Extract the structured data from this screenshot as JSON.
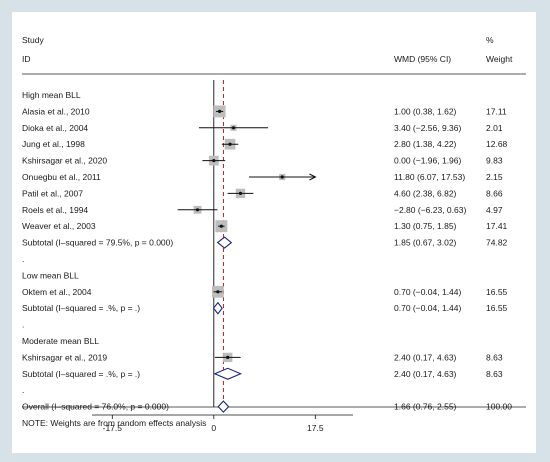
{
  "chart_data": {
    "type": "forest",
    "header": {
      "col1_line1": "Study",
      "col1_line2": "ID",
      "effect": "WMD (95% CI)",
      "weight_line1": "%",
      "weight_line2": "Weight"
    },
    "xlim": [
      -21,
      24
    ],
    "x_ticks": [
      -17.5,
      0,
      17.5
    ],
    "x_tick_labels": [
      "-17.5",
      "0",
      "17.5"
    ],
    "null_line": 0,
    "overall_line": 1.66,
    "rows": [
      {
        "kind": "group",
        "label": "High mean BLL"
      },
      {
        "kind": "study",
        "label": "Alasia et al., 2010",
        "est": 1.0,
        "lo": 0.38,
        "hi": 1.62,
        "ci": "1.00 (0.38, 1.62)",
        "weight": 17.11,
        "weight_text": "17.11"
      },
      {
        "kind": "study",
        "label": "Dioka et al., 2004",
        "est": 3.4,
        "lo": -2.56,
        "hi": 9.36,
        "ci": "3.40 (−2.56, 9.36)",
        "weight": 2.01,
        "weight_text": "2.01"
      },
      {
        "kind": "study",
        "label": "Jung et al., 1998",
        "est": 2.8,
        "lo": 1.38,
        "hi": 4.22,
        "ci": "2.80 (1.38, 4.22)",
        "weight": 12.68,
        "weight_text": "12.68"
      },
      {
        "kind": "study",
        "label": "Kshirsagar et al., 2020",
        "est": 0.0,
        "lo": -1.96,
        "hi": 1.96,
        "ci": "0.00 (−1.96, 1.96)",
        "weight": 9.83,
        "weight_text": "9.83"
      },
      {
        "kind": "study",
        "label": "Onuegbu et al., 2011",
        "est": 11.8,
        "lo": 6.07,
        "hi": 17.53,
        "ci": "11.80 (6.07, 17.53)",
        "weight": 2.15,
        "weight_text": "2.15",
        "arrow": true
      },
      {
        "kind": "study",
        "label": "Patil et al., 2007",
        "est": 4.6,
        "lo": 2.38,
        "hi": 6.82,
        "ci": "4.60 (2.38, 6.82)",
        "weight": 8.66,
        "weight_text": "8.66"
      },
      {
        "kind": "study",
        "label": "Roels et al., 1994",
        "est": -2.8,
        "lo": -6.23,
        "hi": 0.63,
        "ci": "−2.80 (−6.23, 0.63)",
        "weight": 4.97,
        "weight_text": "4.97"
      },
      {
        "kind": "study",
        "label": "Weaver et al., 2003",
        "est": 1.3,
        "lo": 0.75,
        "hi": 1.85,
        "ci": "1.30 (0.75, 1.85)",
        "weight": 17.41,
        "weight_text": "17.41"
      },
      {
        "kind": "subtotal",
        "label": "Subtotal  (I–squared = 79.5%, p = 0.000)",
        "est": 1.85,
        "lo": 0.67,
        "hi": 3.02,
        "ci": "1.85 (0.67, 3.02)",
        "weight_text": "74.82"
      },
      {
        "kind": "dot",
        "label": "."
      },
      {
        "kind": "group",
        "label": "Low mean BLL"
      },
      {
        "kind": "study",
        "label": "Oktem et al., 2004",
        "est": 0.7,
        "lo": -0.04,
        "hi": 1.44,
        "ci": "0.70 (−0.04, 1.44)",
        "weight": 16.55,
        "weight_text": "16.55"
      },
      {
        "kind": "subtotal",
        "label": "Subtotal  (I–squared = .%, p = .)",
        "est": 0.7,
        "lo": -0.04,
        "hi": 1.44,
        "ci": "0.70 (−0.04, 1.44)",
        "weight_text": "16.55"
      },
      {
        "kind": "dot",
        "label": "."
      },
      {
        "kind": "group",
        "label": "Moderate mean BLL"
      },
      {
        "kind": "study",
        "label": "Kshirsagar et al., 2019",
        "est": 2.4,
        "lo": 0.17,
        "hi": 4.63,
        "ci": "2.40 (0.17, 4.63)",
        "weight": 8.63,
        "weight_text": "8.63"
      },
      {
        "kind": "subtotal",
        "label": "Subtotal  (I–squared = .%, p = .)",
        "est": 2.4,
        "lo": 0.17,
        "hi": 4.63,
        "ci": "2.40 (0.17, 4.63)",
        "weight_text": "8.63"
      },
      {
        "kind": "dot",
        "label": "."
      },
      {
        "kind": "overall",
        "label": "Overall  (I–squared = 76.0%, p = 0.000)",
        "est": 1.66,
        "lo": 0.76,
        "hi": 2.55,
        "ci": "1.66 (0.76, 2.55)",
        "weight_text": "100.00"
      },
      {
        "kind": "note",
        "label": "NOTE: Weights are from random effects analysis"
      }
    ],
    "colors": {
      "box": "#bdbdbd",
      "line": "#111111",
      "diamond": "#1a237e",
      "overall_line": "#b71c1c",
      "rule": "#222222"
    }
  }
}
